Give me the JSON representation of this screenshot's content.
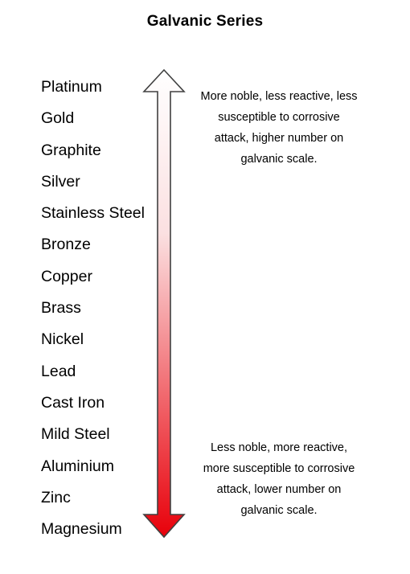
{
  "title": "Galvanic Series",
  "metals": [
    "Platinum",
    "Gold",
    "Graphite",
    "Silver",
    "Stainless Steel",
    "Bronze",
    "Copper",
    "Brass",
    "Nickel",
    "Lead",
    "Cast Iron",
    "Mild Steel",
    "Aluminium",
    "Zinc",
    "Magnesium"
  ],
  "notes": {
    "top": "More noble, less reactive, less susceptible to corrosive attack, higher number on galvanic scale.",
    "bottom": "Less noble, more reactive, more susceptible to corrosive attack, lower number on galvanic scale."
  },
  "colors": {
    "arrow_top": "#ffffff",
    "arrow_bottom": "#e8000a",
    "arrow_outline": "#404040"
  }
}
